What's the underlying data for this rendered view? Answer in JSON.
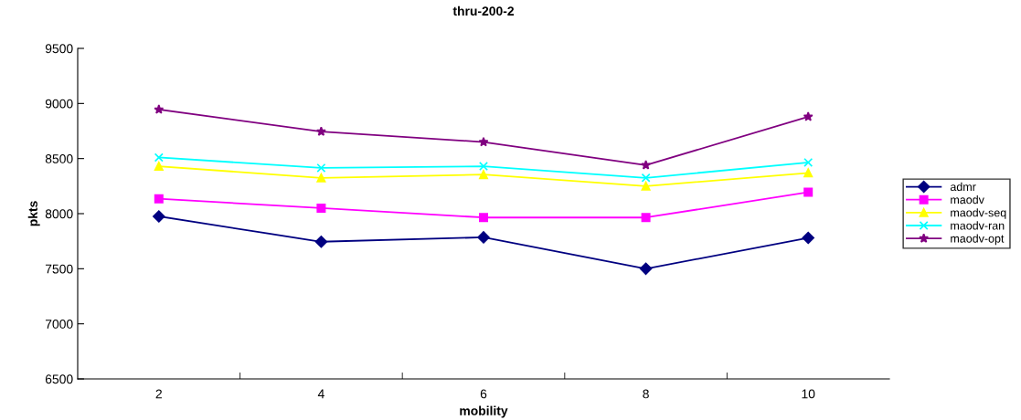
{
  "chart_data": {
    "type": "line",
    "title": "thru-200-2",
    "xlabel": "mobility",
    "ylabel": "pkts",
    "categories": [
      "2",
      "4",
      "6",
      "8",
      "10"
    ],
    "series": [
      {
        "name": "admr",
        "color": "#000080",
        "marker": "diamond",
        "values": [
          7975,
          7745,
          7785,
          7500,
          7780
        ]
      },
      {
        "name": "maodv",
        "color": "#ff00ff",
        "marker": "square",
        "values": [
          8135,
          8050,
          7965,
          7965,
          8195
        ]
      },
      {
        "name": "maodv-seq",
        "color": "#ffff00",
        "marker": "triangle",
        "values": [
          8430,
          8325,
          8355,
          8250,
          8370
        ]
      },
      {
        "name": "maodv-ran",
        "color": "#00ffff",
        "marker": "cross",
        "values": [
          8510,
          8415,
          8430,
          8325,
          8465
        ]
      },
      {
        "name": "maodv-opt",
        "color": "#800080",
        "marker": "star",
        "values": [
          8945,
          8745,
          8650,
          8440,
          8880
        ]
      }
    ],
    "ylim": [
      6500,
      9500
    ],
    "yticks": [
      6500,
      7000,
      7500,
      8000,
      8500,
      9000,
      9500
    ],
    "grid": false,
    "legend": "right",
    "line_style": "solid"
  }
}
